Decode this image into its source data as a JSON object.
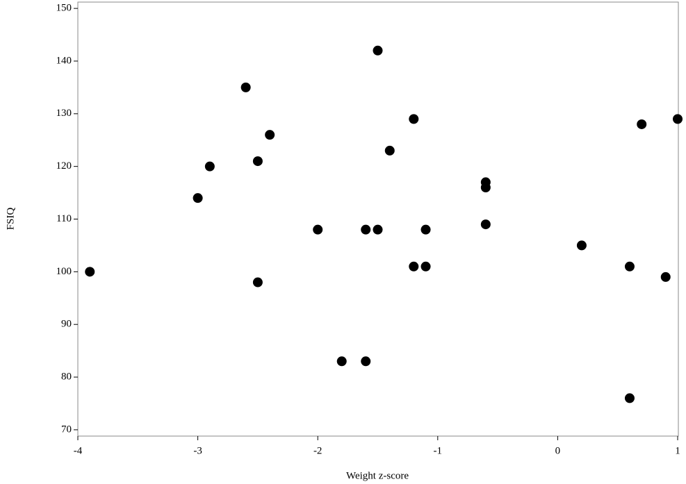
{
  "chart_data": {
    "type": "scatter",
    "x_label": "Weight z-score",
    "y_label": "FSIQ",
    "xlim": [
      -4,
      1
    ],
    "ylim": [
      68.8,
      151.2
    ],
    "xticks": [
      -4,
      -3,
      -2,
      -1,
      0,
      1
    ],
    "yticks": [
      70,
      80,
      90,
      100,
      110,
      120,
      130,
      140,
      150
    ],
    "color": "#000000",
    "x": [
      -3.9,
      -3.0,
      -2.9,
      -2.6,
      -2.5,
      -2.4,
      -2.5,
      -2.0,
      -1.8,
      -1.6,
      -1.6,
      -1.5,
      -1.5,
      -1.4,
      -1.2,
      -1.2,
      -1.1,
      -1.1,
      -0.6,
      -0.6,
      -0.6,
      0.2,
      0.6,
      0.6,
      0.7,
      0.9,
      1.0
    ],
    "values": [
      100,
      114,
      120,
      135,
      121,
      126,
      98,
      108,
      83,
      83,
      108,
      108,
      142,
      123,
      129,
      101,
      101,
      108,
      117,
      116,
      109,
      105,
      101,
      76,
      128,
      99,
      129
    ]
  }
}
